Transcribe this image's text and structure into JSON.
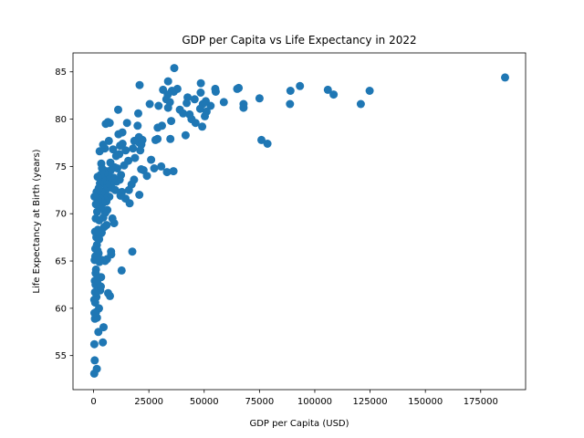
{
  "chart_data": {
    "type": "scatter",
    "title": "GDP per Capita vs Life Expectancy in 2022",
    "xlabel": "GDP per Capita (USD)",
    "ylabel": "Life Expectancy at Birth (years)",
    "xlim": [
      -9300,
      195300
    ],
    "ylim": [
      51.4,
      87.0
    ],
    "x_ticks": [
      0,
      25000,
      50000,
      75000,
      100000,
      125000,
      150000,
      175000
    ],
    "y_ticks": [
      55,
      60,
      65,
      70,
      75,
      80,
      85
    ],
    "grid": false,
    "legend": "none",
    "marker_color": "#1f77b4",
    "points": [
      [
        186000,
        84.4
      ],
      [
        124800,
        83.0
      ],
      [
        120800,
        81.6
      ],
      [
        108500,
        82.6
      ],
      [
        105900,
        83.1
      ],
      [
        93300,
        83.5
      ],
      [
        89000,
        83.0
      ],
      [
        88800,
        81.6
      ],
      [
        78600,
        77.4
      ],
      [
        75900,
        77.8
      ],
      [
        75000,
        82.2
      ],
      [
        67800,
        81.6
      ],
      [
        67800,
        81.2
      ],
      [
        65600,
        83.3
      ],
      [
        64900,
        83.2
      ],
      [
        58900,
        81.8
      ],
      [
        55200,
        82.9
      ],
      [
        55000,
        83.2
      ],
      [
        52900,
        81.4
      ],
      [
        51100,
        80.8
      ],
      [
        50700,
        81.9
      ],
      [
        50300,
        80.3
      ],
      [
        49400,
        81.6
      ],
      [
        49100,
        79.2
      ],
      [
        48500,
        83.8
      ],
      [
        48400,
        82.8
      ],
      [
        48200,
        81.1
      ],
      [
        46100,
        79.6
      ],
      [
        45700,
        82.1
      ],
      [
        44300,
        80.0
      ],
      [
        43400,
        80.5
      ],
      [
        42500,
        82.3
      ],
      [
        42100,
        81.7
      ],
      [
        41600,
        78.3
      ],
      [
        40500,
        80.6
      ],
      [
        39000,
        81.0
      ],
      [
        37900,
        83.2
      ],
      [
        36500,
        85.4
      ],
      [
        36300,
        82.9
      ],
      [
        36100,
        74.5
      ],
      [
        35400,
        83.0
      ],
      [
        35100,
        79.8
      ],
      [
        34700,
        77.9
      ],
      [
        34500,
        81.8
      ],
      [
        33700,
        81.2
      ],
      [
        33700,
        84.0
      ],
      [
        33500,
        82.6
      ],
      [
        33200,
        74.4
      ],
      [
        32900,
        82.1
      ],
      [
        31400,
        83.1
      ],
      [
        30900,
        79.3
      ],
      [
        30600,
        75.0
      ],
      [
        29400,
        81.4
      ],
      [
        29000,
        79.1
      ],
      [
        28900,
        77.9
      ],
      [
        28000,
        77.8
      ],
      [
        27400,
        74.8
      ],
      [
        26000,
        75.7
      ],
      [
        25400,
        81.6
      ],
      [
        24100,
        74.0
      ],
      [
        22600,
        74.6
      ],
      [
        22100,
        77.8
      ],
      [
        21600,
        77.3
      ],
      [
        21500,
        74.7
      ],
      [
        21100,
        76.7
      ],
      [
        20800,
        83.6
      ],
      [
        20700,
        77.5
      ],
      [
        20700,
        72.0
      ],
      [
        20500,
        78.1
      ],
      [
        20200,
        80.6
      ],
      [
        19900,
        79.3
      ],
      [
        18700,
        75.9
      ],
      [
        18400,
        77.7
      ],
      [
        18300,
        73.6
      ],
      [
        17800,
        76.9
      ],
      [
        17500,
        66.0
      ],
      [
        17200,
        73.1
      ],
      [
        16300,
        71.1
      ],
      [
        16000,
        72.5
      ],
      [
        15700,
        75.6
      ],
      [
        15100,
        79.6
      ],
      [
        14500,
        76.7
      ],
      [
        14400,
        71.6
      ],
      [
        13800,
        75.1
      ],
      [
        13100,
        77.4
      ],
      [
        13000,
        78.6
      ],
      [
        12800,
        72.3
      ],
      [
        12700,
        64.0
      ],
      [
        12400,
        74.1
      ],
      [
        12200,
        71.9
      ],
      [
        12000,
        77.2
      ],
      [
        11800,
        73.6
      ],
      [
        11600,
        76.3
      ],
      [
        11300,
        78.4
      ],
      [
        11100,
        81.0
      ],
      [
        10700,
        74.8
      ],
      [
        10400,
        73.4
      ],
      [
        10200,
        76.1
      ],
      [
        9800,
        72.5
      ],
      [
        9500,
        74.9
      ],
      [
        9300,
        69.0
      ],
      [
        9100,
        73.8
      ],
      [
        8800,
        76.8
      ],
      [
        8500,
        69.5
      ],
      [
        8300,
        72.7
      ],
      [
        8000,
        65.7
      ],
      [
        7900,
        66.0
      ],
      [
        7800,
        74.6
      ],
      [
        7700,
        73.1
      ],
      [
        7600,
        75.4
      ],
      [
        7400,
        61.3
      ],
      [
        7300,
        79.6
      ],
      [
        7100,
        71.8
      ],
      [
        6900,
        77.7
      ],
      [
        6700,
        74.2
      ],
      [
        6600,
        61.6
      ],
      [
        6500,
        79.7
      ],
      [
        6400,
        72.9
      ],
      [
        6300,
        73.6
      ],
      [
        6200,
        70.4
      ],
      [
        6100,
        65.2
      ],
      [
        5900,
        68.8
      ],
      [
        5800,
        71.3
      ],
      [
        5700,
        74.5
      ],
      [
        5600,
        73.0
      ],
      [
        5500,
        79.5
      ],
      [
        5400,
        72.4
      ],
      [
        5300,
        70.1
      ],
      [
        5200,
        65.0
      ],
      [
        5100,
        76.9
      ],
      [
        5000,
        71.9
      ],
      [
        4900,
        74.3
      ],
      [
        4800,
        68.6
      ],
      [
        4700,
        73.5
      ],
      [
        4600,
        72.0
      ],
      [
        4500,
        58.0
      ],
      [
        4400,
        69.6
      ],
      [
        4300,
        77.3
      ],
      [
        4200,
        56.4
      ],
      [
        4100,
        71.1
      ],
      [
        4000,
        73.7
      ],
      [
        3900,
        65.1
      ],
      [
        3800,
        74.8
      ],
      [
        3700,
        68.0
      ],
      [
        3600,
        72.3
      ],
      [
        3500,
        75.3
      ],
      [
        3400,
        63.3
      ],
      [
        3300,
        70.6
      ],
      [
        3200,
        67.9
      ],
      [
        3100,
        74.1
      ],
      [
        3000,
        61.9
      ],
      [
        2950,
        71.6
      ],
      [
        2850,
        73.2
      ],
      [
        2750,
        76.6
      ],
      [
        2650,
        64.9
      ],
      [
        2550,
        69.3
      ],
      [
        2450,
        60.0
      ],
      [
        2350,
        72.7
      ],
      [
        2250,
        65.8
      ],
      [
        2150,
        57.5
      ],
      [
        2050,
        71.4
      ],
      [
        1950,
        68.3
      ],
      [
        1850,
        73.9
      ],
      [
        1750,
        62.7
      ],
      [
        1650,
        70.2
      ],
      [
        1550,
        59.0
      ],
      [
        1500,
        66.7
      ],
      [
        1450,
        53.6
      ],
      [
        1350,
        72.3
      ],
      [
        1300,
        61.2
      ],
      [
        1250,
        67.5
      ],
      [
        1150,
        59.6
      ],
      [
        1100,
        64.1
      ],
      [
        1050,
        71.0
      ],
      [
        980,
        69.5
      ],
      [
        930,
        63.7
      ],
      [
        870,
        62.5
      ],
      [
        820,
        66.3
      ],
      [
        770,
        65.5
      ],
      [
        730,
        60.6
      ],
      [
        680,
        68.1
      ],
      [
        640,
        61.7
      ],
      [
        600,
        58.9
      ],
      [
        560,
        62.9
      ],
      [
        520,
        54.5
      ],
      [
        480,
        65.1
      ],
      [
        440,
        71.8
      ],
      [
        400,
        59.5
      ],
      [
        360,
        56.2
      ],
      [
        330,
        53.1
      ],
      [
        300,
        60.9
      ],
      [
        1350,
        63.0
      ],
      [
        1800,
        66.1
      ],
      [
        2500,
        67.3
      ],
      [
        3300,
        62.3
      ]
    ]
  }
}
